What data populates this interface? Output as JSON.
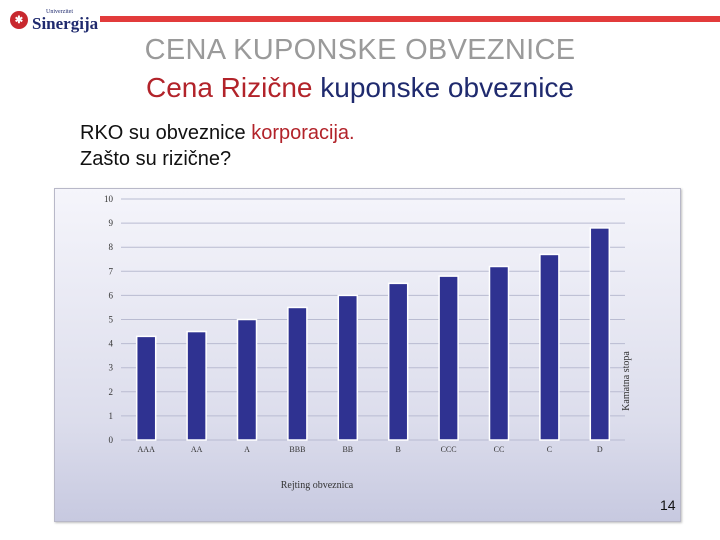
{
  "header": {
    "logo_small": "Univerzitet",
    "logo_name": "Sinergija",
    "title": "CENA KUPONSKE OBVEZNICE",
    "subtitle_red": "Cena Rizične",
    "subtitle_rest": " kuponske obveznice"
  },
  "body": {
    "line1_prefix": "RKO su obveznice ",
    "line1_red": "korporacija.",
    "line2": "Zašto su rizične?"
  },
  "page_number": "14",
  "colors": {
    "bar": "#2f3291",
    "accent_red": "#b2232a",
    "title_gray": "#9a9a9a",
    "navy": "#1f2a6e"
  },
  "chart_data": {
    "type": "bar",
    "categories": [
      "AAA",
      "AA",
      "A",
      "BBB",
      "BB",
      "B",
      "CCC",
      "CC",
      "C",
      "D"
    ],
    "values": [
      4.3,
      4.5,
      5.0,
      5.5,
      6.0,
      6.5,
      6.8,
      7.2,
      7.7,
      8.8
    ],
    "xlabel": "Rejting obveznica",
    "ylabel": "Kamatna stopa",
    "ylim": [
      0,
      10
    ],
    "yticks": [
      0,
      1,
      2,
      3,
      4,
      5,
      6,
      7,
      8,
      9,
      10
    ],
    "grid": true,
    "legend": "none"
  }
}
